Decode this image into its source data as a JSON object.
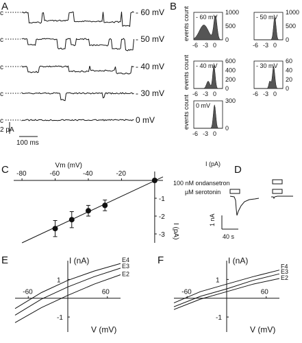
{
  "panels": {
    "a": "A",
    "b": "B",
    "c": "C",
    "d": "D",
    "e": "E",
    "f": "F"
  },
  "panel_a": {
    "closed_label": "c",
    "voltages": [
      "- 60 mV",
      "- 50 mV",
      "- 40 mV",
      "- 30 mV",
      "0 mV"
    ],
    "scale_current": "2 pA",
    "scale_time": "100 ms"
  },
  "panel_b": {
    "hist_titles": [
      "- 60 mV",
      "- 50 mV",
      "- 40 mV",
      "- 30 mV",
      "0 mV"
    ],
    "ylabel": "events count",
    "xticks": [
      "-6",
      "-3",
      "0"
    ],
    "xlabel": "I (pA)",
    "yticks": [
      [
        "1000",
        "500",
        "0"
      ],
      [
        "1000",
        "500",
        "0"
      ],
      [
        "600",
        "400",
        "200",
        "0"
      ],
      [
        "60",
        "40",
        "20",
        "0"
      ],
      [
        "300",
        "0"
      ]
    ]
  },
  "panel_c": {
    "xlabel": "Vm (mV)",
    "xticks": [
      "-80",
      "-60",
      "-40",
      "-20"
    ],
    "ylabel": "I (pA)",
    "yticks": [
      "-1",
      "-2",
      "-3"
    ]
  },
  "panel_d": {
    "label_ondansetron": "100 nM ondansetron",
    "label_serotonin": "µM serotonin",
    "scale_current": "1 nA",
    "scale_time": "40 s"
  },
  "panel_e": {
    "ylabel": "I (nA)",
    "xlabel": "V (mV)",
    "xticks": [
      "-60",
      "60"
    ],
    "yticks": [
      "1",
      "-1"
    ],
    "curves": [
      "E4",
      "E3",
      "E2"
    ]
  },
  "panel_f": {
    "ylabel": "I (nA)",
    "xlabel": "V (mV)",
    "xticks": [
      "-60",
      "60"
    ],
    "yticks": [
      "1",
      "-1"
    ],
    "curves": [
      "F4",
      "E3",
      "E2"
    ]
  },
  "chart_data": [
    {
      "type": "scatter",
      "panel": "C",
      "xlabel": "Vm (mV)",
      "ylabel": "I (pA)",
      "xlim": [
        -85,
        5
      ],
      "ylim": [
        -3.5,
        0.5
      ],
      "x": [
        -60,
        -50,
        -40,
        -30,
        0
      ],
      "y": [
        -2.7,
        -2.2,
        -1.7,
        -1.4,
        0.0
      ],
      "err": [
        0.45,
        0.45,
        0.3,
        0.3,
        0.1
      ],
      "fit_line": {
        "x": [
          -80,
          5
        ],
        "y": [
          -3.5,
          0.2
        ]
      }
    },
    {
      "type": "line",
      "panel": "E",
      "xlabel": "V (mV)",
      "ylabel": "I (nA)",
      "xlim": [
        -80,
        80
      ],
      "ylim": [
        -1.8,
        2.0
      ],
      "series": [
        {
          "name": "E4",
          "x": [
            -80,
            -40,
            0,
            40,
            80
          ],
          "y": [
            -0.55,
            0.3,
            0.95,
            1.45,
            1.85
          ]
        },
        {
          "name": "E3",
          "x": [
            -80,
            -40,
            0,
            40,
            80
          ],
          "y": [
            -0.9,
            -0.05,
            0.6,
            1.15,
            1.6
          ]
        },
        {
          "name": "E2",
          "x": [
            -80,
            -40,
            0,
            40,
            80
          ],
          "y": [
            -1.3,
            -0.5,
            0.15,
            0.75,
            1.25
          ]
        }
      ]
    },
    {
      "type": "line",
      "panel": "F",
      "xlabel": "V (mV)",
      "ylabel": "I (nA)",
      "xlim": [
        -80,
        80
      ],
      "ylim": [
        -1.8,
        2.0
      ],
      "series": [
        {
          "name": "F4",
          "x": [
            -80,
            -40,
            0,
            40,
            80
          ],
          "y": [
            -0.25,
            0.35,
            0.75,
            1.15,
            1.5
          ]
        },
        {
          "name": "E3",
          "x": [
            -80,
            -40,
            0,
            40,
            80
          ],
          "y": [
            -0.45,
            0.1,
            0.5,
            0.95,
            1.3
          ]
        },
        {
          "name": "E2",
          "x": [
            -80,
            -40,
            0,
            40,
            80
          ],
          "y": [
            -0.6,
            -0.05,
            0.35,
            0.75,
            1.05
          ]
        }
      ]
    }
  ]
}
